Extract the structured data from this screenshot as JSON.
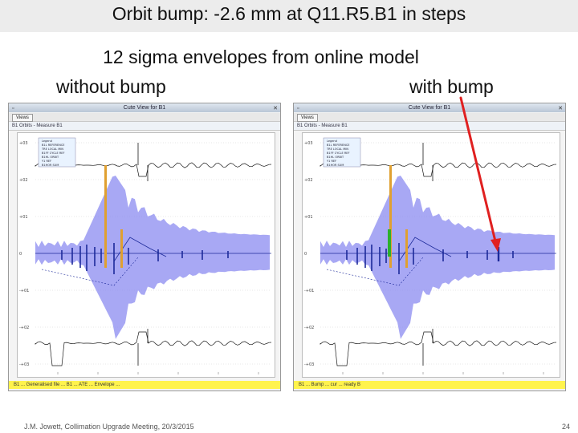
{
  "slide": {
    "title": "Orbit bump:  -2.6 mm  at Q11.R5.B1 in steps",
    "subtitle": "12 sigma envelopes from online model",
    "left_label": "without bump",
    "right_label": "with bump",
    "footer": "J.M. Jowett, Collimation Upgrade Meeting, 20/3/2015",
    "page_number": "24"
  },
  "windows": [
    {
      "title": "Cute View for B1",
      "views_label": "Views",
      "orbit_label": "B1 Orbits - Measure B1",
      "status": "B1 ... Generalised file ... B1 ... ATE ... Envelope ..."
    },
    {
      "title": "Cute View for B1",
      "views_label": "Views",
      "orbit_label": "B1 Orbits - Measure B1",
      "status": "B1 ... Bump ... cur ... ready B"
    }
  ],
  "plot_axis": {
    "y_ticks": [
      "+03",
      "+02",
      "+01",
      "0",
      "-+01",
      "-+02",
      "-+03"
    ],
    "legend": [
      "Legend",
      "B1L REFERENCE",
      "TRE LOCAL MIN",
      "B1FF CYCLE REF",
      "B1HL ORBIT",
      "Y1 REF",
      "B1HOR SUM"
    ]
  },
  "colors": {
    "envelope": "#8b8bf0",
    "trace": "#1a1a1a",
    "orbit": "#1d2a9a",
    "marker_orange": "#e0a030",
    "marker_green": "#2cb02c",
    "arrow": "#e02020",
    "status": "#fff34d"
  }
}
